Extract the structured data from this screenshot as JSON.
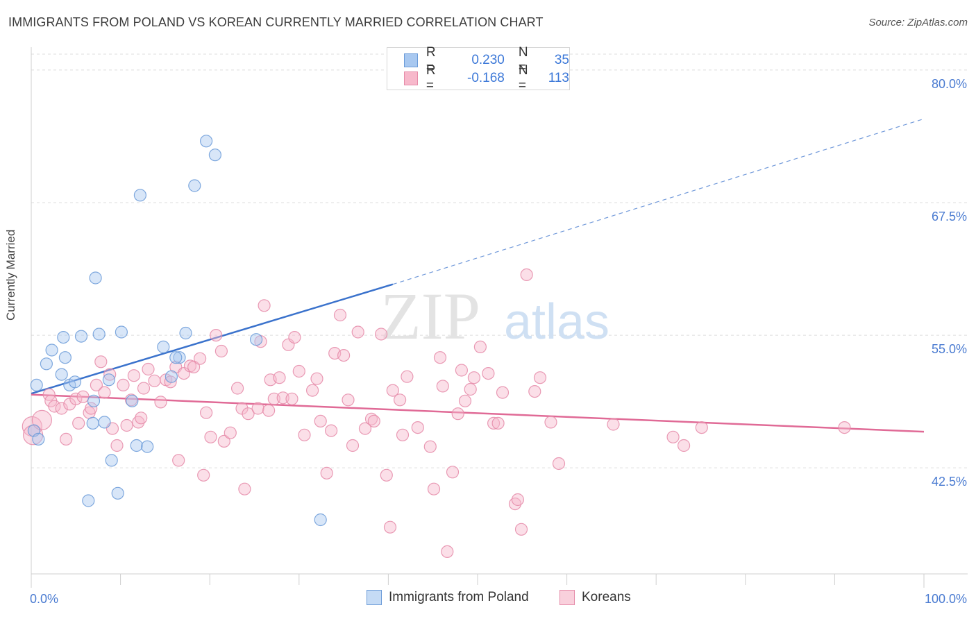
{
  "header": {
    "title": "IMMIGRANTS FROM POLAND VS KOREAN CURRENTLY MARRIED CORRELATION CHART",
    "source": "Source: ZipAtlas.com"
  },
  "watermark": {
    "zip": "ZIP",
    "atlas": "atlas"
  },
  "legend": {
    "rows": [
      {
        "r_label": "R =",
        "r_value": "0.230",
        "n_label": "N =",
        "n_value": "35",
        "color": "#a8c8f0",
        "border": "#6a9ad8"
      },
      {
        "r_label": "R =",
        "r_value": "-0.168",
        "n_label": "N =",
        "n_value": "113",
        "color": "#f7b8cb",
        "border": "#e58aa8"
      }
    ]
  },
  "bottom_legend": [
    {
      "label": "Immigrants from Poland",
      "color": "#c5dbf5",
      "border": "#6a9ad8"
    },
    {
      "label": "Koreans",
      "color": "#f9d0dc",
      "border": "#e58aa8"
    }
  ],
  "chart_data": {
    "type": "scatter",
    "title": "IMMIGRANTS FROM POLAND VS KOREAN CURRENTLY MARRIED CORRELATION CHART",
    "xlabel": "",
    "ylabel": "Currently Married",
    "x_tick_labels": [
      "0.0%",
      "100.0%"
    ],
    "y_tick_labels": [
      "80.0%",
      "67.5%",
      "55.0%",
      "42.5%"
    ],
    "y_ticks": [
      80.0,
      67.5,
      55.0,
      42.5
    ],
    "xlim": [
      0,
      100
    ],
    "ylim": [
      32.5,
      81.5
    ],
    "grid": true,
    "legend_position": "top-center",
    "series": [
      {
        "name": "Immigrants from Poland",
        "color": "#a8c8f0",
        "edge": "#6a9ad8",
        "trend": {
          "x0": 0,
          "y0": 49.5,
          "x1": 40.5,
          "y1": 59.8,
          "dash_x1": 100,
          "dash_y1": 75.4,
          "color": "#3a72cc"
        },
        "points": [
          [
            0.3,
            46.0
          ],
          [
            0.8,
            45.2
          ],
          [
            0.6,
            50.3
          ],
          [
            1.7,
            52.3
          ],
          [
            2.3,
            53.6
          ],
          [
            3.6,
            54.8
          ],
          [
            3.4,
            51.3
          ],
          [
            3.8,
            52.9
          ],
          [
            4.3,
            50.3
          ],
          [
            4.9,
            50.6
          ],
          [
            5.6,
            54.9
          ],
          [
            7.6,
            55.1
          ],
          [
            7.2,
            60.4
          ],
          [
            6.9,
            46.7
          ],
          [
            6.4,
            39.4
          ],
          [
            7.0,
            48.8
          ],
          [
            8.2,
            46.8
          ],
          [
            8.7,
            50.8
          ],
          [
            9.0,
            43.2
          ],
          [
            9.7,
            40.1
          ],
          [
            10.1,
            55.3
          ],
          [
            11.3,
            48.8
          ],
          [
            11.8,
            44.6
          ],
          [
            12.2,
            68.2
          ],
          [
            13.0,
            44.5
          ],
          [
            14.8,
            53.9
          ],
          [
            15.7,
            51.1
          ],
          [
            16.6,
            52.9
          ],
          [
            17.3,
            55.2
          ],
          [
            16.2,
            52.9
          ],
          [
            18.3,
            69.1
          ],
          [
            19.6,
            73.3
          ],
          [
            20.6,
            72.0
          ],
          [
            25.2,
            54.6
          ],
          [
            32.4,
            37.6
          ]
        ]
      },
      {
        "name": "Koreans",
        "color": "#f7b8cb",
        "edge": "#e58aa8",
        "trend": {
          "x0": 0,
          "y0": 49.4,
          "x1": 100,
          "y1": 45.9,
          "color": "#e06a96"
        },
        "points": [
          [
            0.1,
            46.4
          ],
          [
            0.2,
            45.6
          ],
          [
            1.2,
            47.0
          ],
          [
            2.0,
            49.4
          ],
          [
            2.2,
            48.8
          ],
          [
            2.6,
            48.3
          ],
          [
            3.4,
            48.1
          ],
          [
            3.9,
            45.2
          ],
          [
            4.3,
            48.5
          ],
          [
            5.0,
            49.0
          ],
          [
            5.3,
            46.7
          ],
          [
            5.8,
            49.2
          ],
          [
            6.5,
            47.7
          ],
          [
            6.7,
            48.1
          ],
          [
            7.3,
            50.3
          ],
          [
            7.8,
            52.5
          ],
          [
            8.2,
            49.6
          ],
          [
            8.8,
            51.3
          ],
          [
            9.1,
            46.2
          ],
          [
            9.6,
            44.6
          ],
          [
            10.3,
            50.3
          ],
          [
            10.7,
            46.5
          ],
          [
            11.2,
            48.9
          ],
          [
            11.5,
            51.2
          ],
          [
            12.0,
            46.8
          ],
          [
            12.3,
            47.2
          ],
          [
            12.6,
            50.0
          ],
          [
            13.1,
            51.8
          ],
          [
            13.8,
            50.7
          ],
          [
            14.5,
            48.7
          ],
          [
            15.1,
            50.8
          ],
          [
            15.6,
            50.6
          ],
          [
            16.2,
            52.0
          ],
          [
            16.5,
            43.2
          ],
          [
            17.1,
            51.4
          ],
          [
            17.8,
            52.1
          ],
          [
            18.2,
            52.0
          ],
          [
            18.9,
            52.8
          ],
          [
            19.3,
            41.8
          ],
          [
            19.6,
            47.7
          ],
          [
            20.1,
            45.4
          ],
          [
            20.7,
            55.0
          ],
          [
            21.3,
            53.5
          ],
          [
            21.6,
            45.0
          ],
          [
            22.3,
            45.8
          ],
          [
            23.1,
            50.0
          ],
          [
            23.6,
            48.1
          ],
          [
            23.9,
            40.5
          ],
          [
            24.3,
            47.6
          ],
          [
            25.4,
            48.1
          ],
          [
            25.7,
            54.4
          ],
          [
            26.1,
            57.8
          ],
          [
            26.6,
            47.9
          ],
          [
            26.8,
            50.8
          ],
          [
            27.2,
            49.0
          ],
          [
            27.8,
            51.0
          ],
          [
            28.2,
            49.1
          ],
          [
            28.8,
            54.1
          ],
          [
            29.2,
            49.0
          ],
          [
            29.5,
            54.8
          ],
          [
            30.0,
            51.6
          ],
          [
            30.6,
            45.6
          ],
          [
            31.5,
            49.8
          ],
          [
            32.0,
            50.9
          ],
          [
            32.4,
            46.9
          ],
          [
            33.1,
            42.0
          ],
          [
            33.6,
            46.0
          ],
          [
            34.0,
            53.3
          ],
          [
            34.6,
            56.9
          ],
          [
            35.0,
            53.1
          ],
          [
            35.5,
            48.9
          ],
          [
            36.0,
            44.6
          ],
          [
            36.6,
            55.3
          ],
          [
            37.4,
            46.2
          ],
          [
            38.1,
            47.1
          ],
          [
            38.4,
            46.9
          ],
          [
            39.2,
            55.1
          ],
          [
            39.8,
            41.8
          ],
          [
            40.2,
            36.9
          ],
          [
            40.5,
            49.8
          ],
          [
            41.3,
            48.9
          ],
          [
            41.6,
            45.6
          ],
          [
            42.1,
            51.1
          ],
          [
            43.3,
            46.3
          ],
          [
            44.7,
            44.5
          ],
          [
            45.1,
            40.5
          ],
          [
            45.8,
            52.9
          ],
          [
            46.1,
            50.2
          ],
          [
            46.6,
            34.6
          ],
          [
            47.2,
            42.1
          ],
          [
            47.8,
            47.6
          ],
          [
            48.2,
            51.7
          ],
          [
            48.6,
            48.8
          ],
          [
            49.2,
            49.9
          ],
          [
            49.6,
            51.0
          ],
          [
            50.3,
            53.9
          ],
          [
            51.2,
            51.4
          ],
          [
            51.8,
            46.7
          ],
          [
            52.3,
            46.7
          ],
          [
            52.8,
            49.6
          ],
          [
            54.2,
            39.1
          ],
          [
            54.5,
            39.5
          ],
          [
            54.9,
            36.7
          ],
          [
            55.5,
            60.7
          ],
          [
            56.4,
            49.7
          ],
          [
            57.0,
            51.0
          ],
          [
            58.2,
            46.8
          ],
          [
            59.1,
            42.9
          ],
          [
            65.2,
            46.6
          ],
          [
            71.9,
            45.4
          ],
          [
            73.1,
            44.6
          ],
          [
            75.1,
            46.3
          ],
          [
            91.1,
            46.3
          ]
        ]
      }
    ]
  }
}
